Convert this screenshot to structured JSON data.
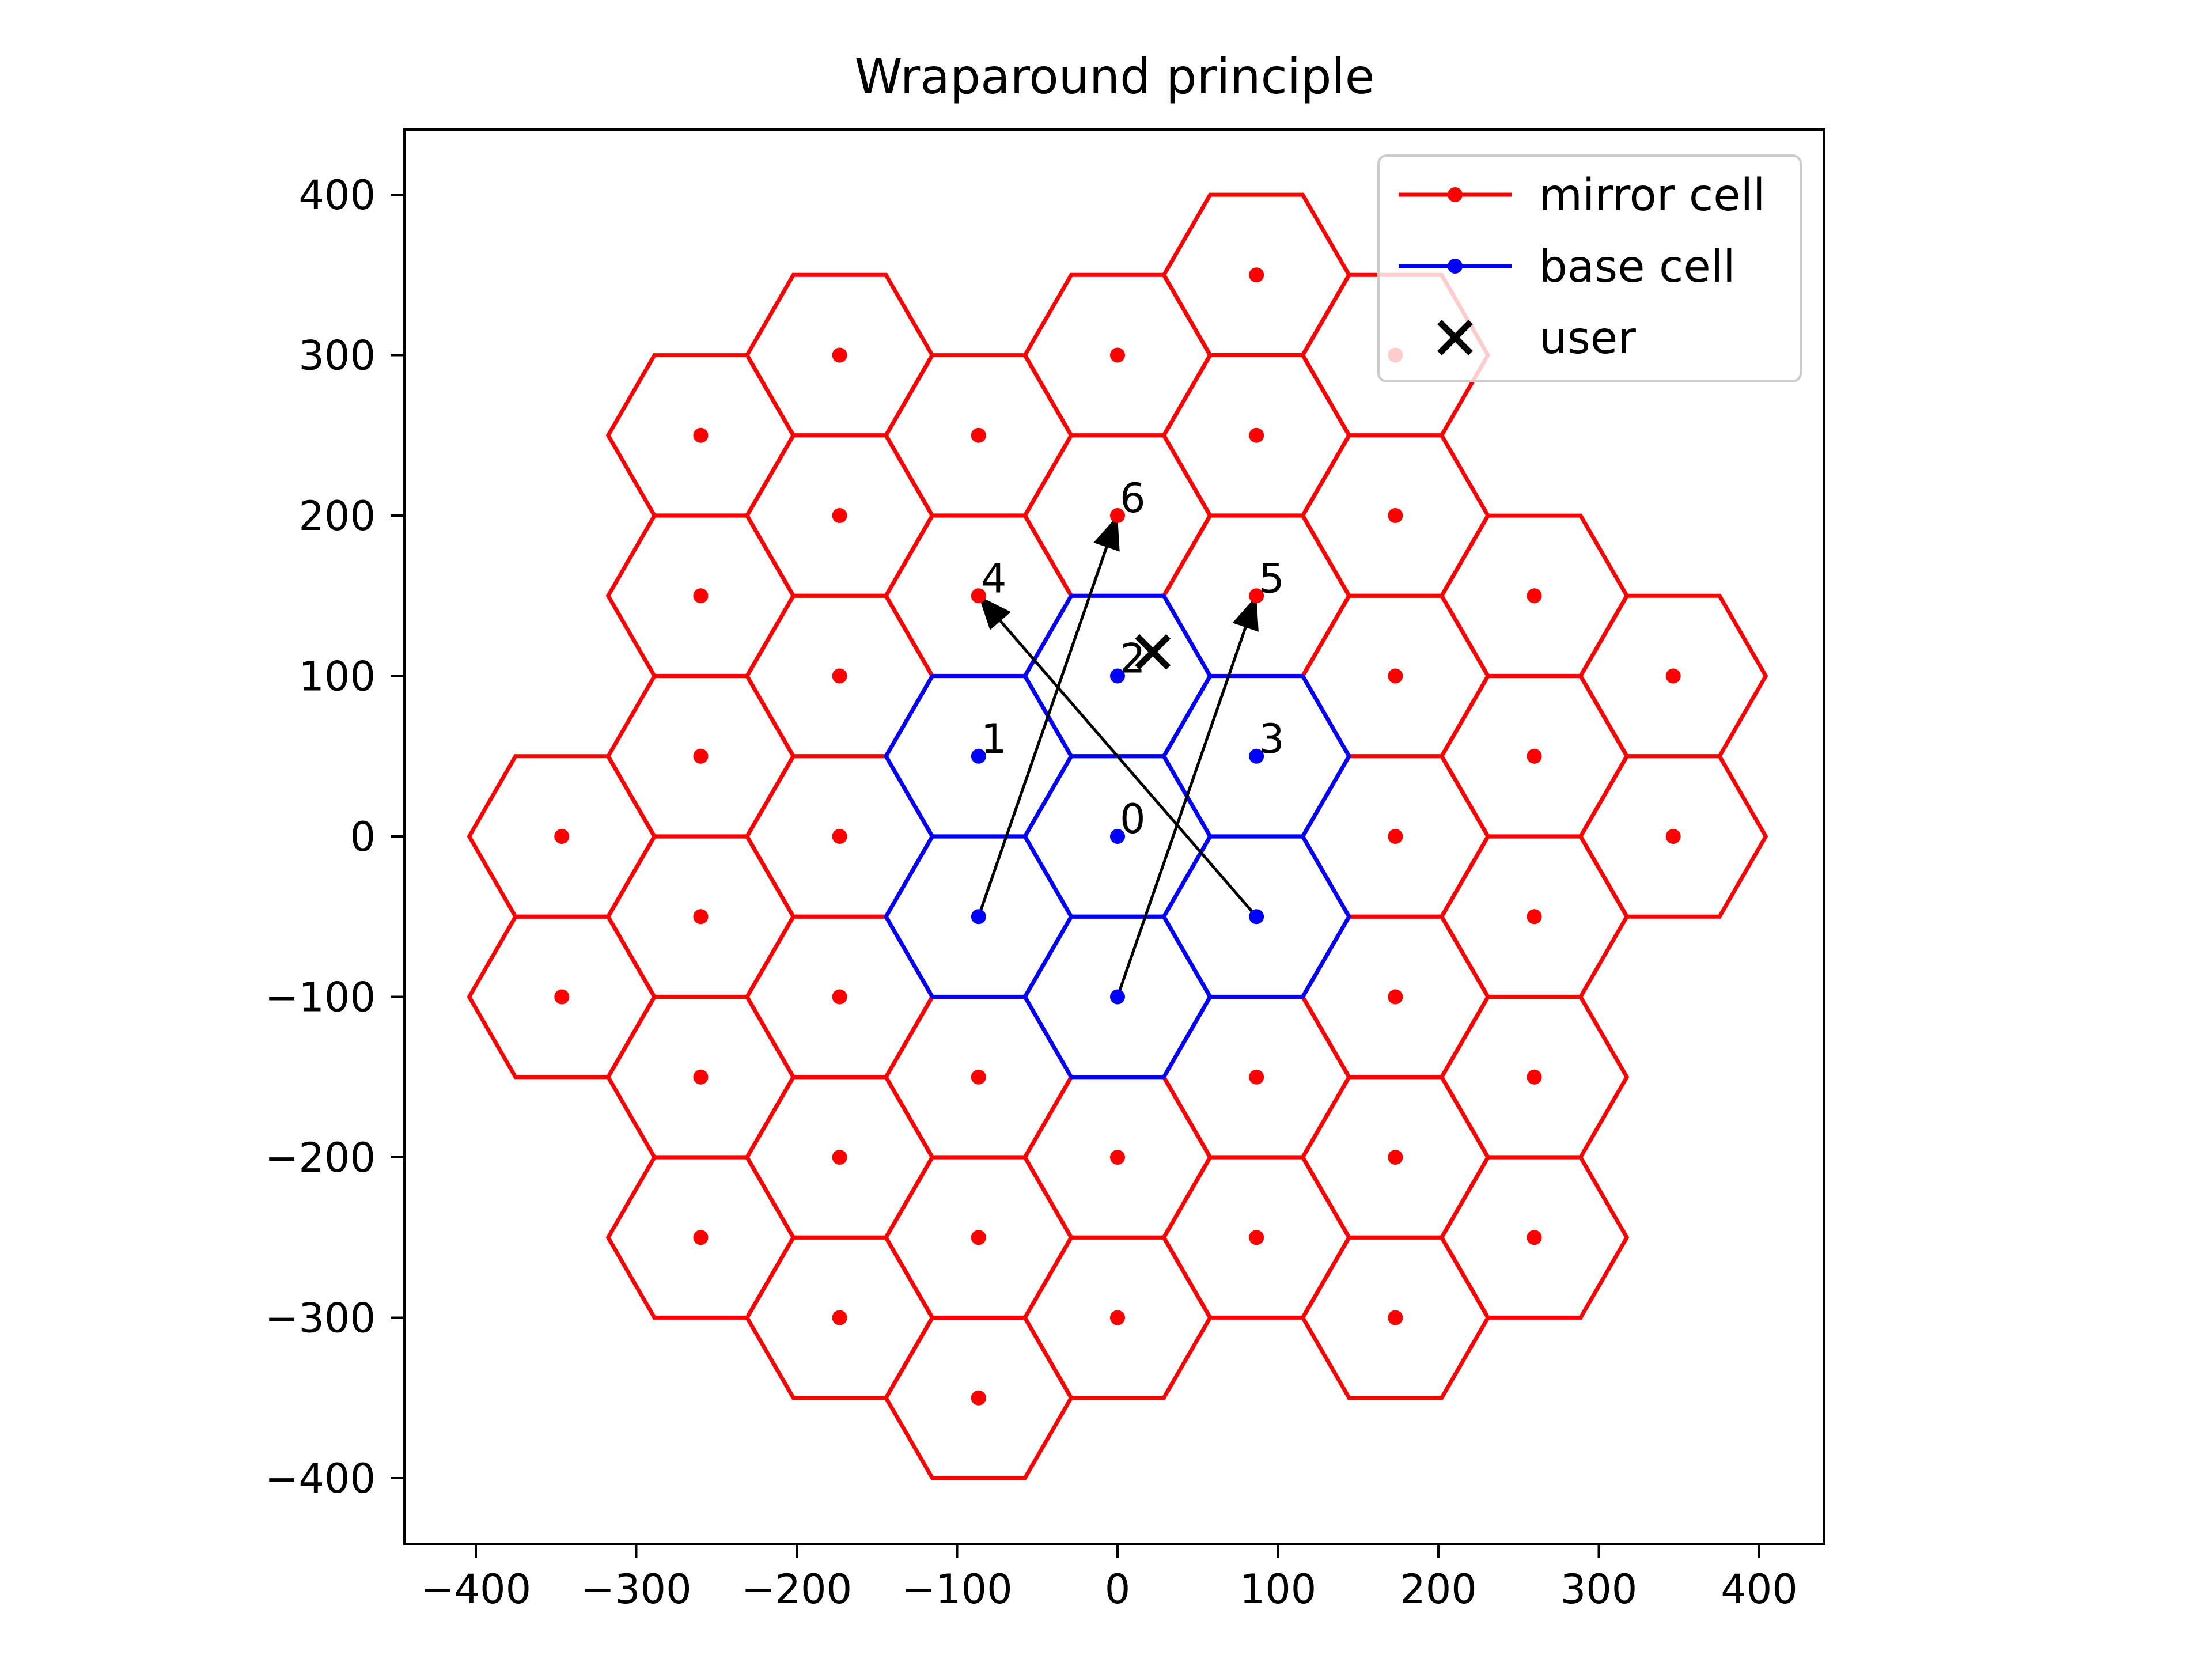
{
  "chart_data": {
    "type": "scatter",
    "title": "Wraparound principle",
    "xlabel": "",
    "ylabel": "",
    "xlim": [
      -400,
      400
    ],
    "ylim": [
      -400,
      400
    ],
    "x_ticks": [
      -400,
      -300,
      -200,
      -100,
      0,
      100,
      200,
      300,
      400
    ],
    "y_ticks": [
      -400,
      -300,
      -200,
      -100,
      0,
      100,
      200,
      300,
      400
    ],
    "x_tick_labels": [
      "−400",
      "−300",
      "−200",
      "−100",
      "0",
      "100",
      "200",
      "300",
      "400"
    ],
    "y_tick_labels": [
      "−400",
      "−300",
      "−200",
      "−100",
      "0",
      "100",
      "200",
      "300",
      "400"
    ],
    "grid": false,
    "legend_position": "top-right",
    "hex_radius": 57.7,
    "series": [
      {
        "name": "mirror cell",
        "color": "#ff0000",
        "marker": "dot-with-line",
        "points": [
          [
            -86.6,
            150
          ],
          [
            0,
            200
          ],
          [
            86.6,
            150
          ],
          [
            -86.6,
            -350
          ],
          [
            -173.2,
            -300
          ],
          [
            0,
            -300
          ],
          [
            -259.8,
            -250
          ],
          [
            -86.6,
            -250
          ],
          [
            86.6,
            -250
          ],
          [
            -173.2,
            -200
          ],
          [
            0,
            -200
          ],
          [
            -259.8,
            -150
          ],
          [
            -86.6,
            -150
          ],
          [
            86.6,
            -150
          ],
          [
            -346.4,
            -100
          ],
          [
            -173.2,
            -100
          ],
          [
            -259.8,
            -50
          ],
          [
            -346.4,
            0
          ],
          [
            -173.2,
            0
          ],
          [
            -259.8,
            50
          ],
          [
            -173.2,
            100
          ],
          [
            -259.8,
            150
          ],
          [
            -173.2,
            200
          ],
          [
            -259.8,
            250
          ],
          [
            -173.2,
            300
          ],
          [
            -86.6,
            250
          ],
          [
            0,
            300
          ],
          [
            86.6,
            250
          ],
          [
            86.6,
            350
          ],
          [
            173.2,
            300
          ],
          [
            173.2,
            200
          ],
          [
            259.8,
            150
          ],
          [
            173.2,
            100
          ],
          [
            346.4,
            100
          ],
          [
            259.8,
            50
          ],
          [
            173.2,
            0
          ],
          [
            346.4,
            0
          ],
          [
            259.8,
            -50
          ],
          [
            173.2,
            -100
          ],
          [
            259.8,
            -150
          ],
          [
            173.2,
            -200
          ],
          [
            259.8,
            -250
          ],
          [
            173.2,
            -300
          ]
        ]
      },
      {
        "name": "base cell",
        "color": "#0000ff",
        "marker": "dot-with-line",
        "points": [
          [
            0,
            0
          ],
          [
            -86.6,
            50
          ],
          [
            0,
            100
          ],
          [
            86.6,
            50
          ],
          [
            -86.6,
            -50
          ],
          [
            0,
            -100
          ],
          [
            86.6,
            -50
          ]
        ]
      },
      {
        "name": "user",
        "color": "#000000",
        "marker": "x",
        "points": [
          [
            22,
            115
          ]
        ]
      }
    ],
    "cell_labels": [
      {
        "text": "0",
        "x": 0,
        "y": 0
      },
      {
        "text": "1",
        "x": -86.6,
        "y": 50
      },
      {
        "text": "2",
        "x": 0,
        "y": 100
      },
      {
        "text": "3",
        "x": 86.6,
        "y": 50
      },
      {
        "text": "4",
        "x": -86.6,
        "y": 150
      },
      {
        "text": "5",
        "x": 86.6,
        "y": 150
      },
      {
        "text": "6",
        "x": 0,
        "y": 200
      }
    ],
    "arrows": [
      {
        "from": [
          -86.6,
          -50
        ],
        "to": [
          0,
          200
        ]
      },
      {
        "from": [
          0,
          -100
        ],
        "to": [
          86.6,
          150
        ]
      },
      {
        "from": [
          86.6,
          -50
        ],
        "to": [
          -86.6,
          150
        ]
      }
    ]
  }
}
